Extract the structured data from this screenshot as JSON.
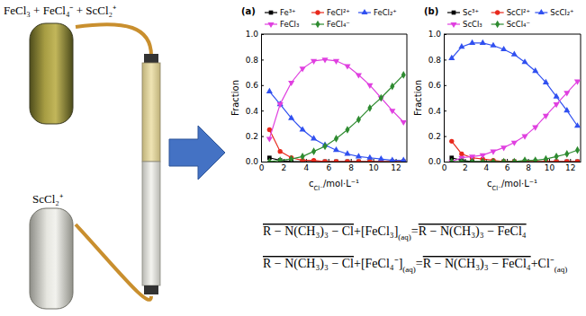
{
  "labels": {
    "top_tube": "FeCl₃ + FeCl₄⁻ + ScCl₂⁺",
    "bottom_tube": "ScCl₂⁺"
  },
  "chart_data": [
    {
      "type": "line",
      "title": "(a)",
      "xlabel": [
        "c",
        "Cl⁻",
        "/mol·L⁻¹"
      ],
      "ylabel": "Fraction",
      "x": [
        0.75,
        1.7,
        2.7,
        3.7,
        4.7,
        5.7,
        6.7,
        7.7,
        8.7,
        9.7,
        10.7,
        11.7,
        12.7
      ],
      "xlim": [
        0,
        13
      ],
      "xticks": [
        0,
        2,
        4,
        6,
        8,
        10,
        12
      ],
      "ylim": [
        0,
        1
      ],
      "yticks": [
        {
          "value": 0,
          "label": "0.0"
        },
        0.2,
        0.4,
        0.6,
        0.8,
        {
          "value": 1,
          "label": "1.0"
        }
      ],
      "legend": "top",
      "series": [
        {
          "name": "Fe³⁺",
          "color": "#000000",
          "marker": "square",
          "line_style": "solid",
          "values": [
            0.03,
            0.01,
            0,
            0,
            0,
            0,
            0,
            0,
            0,
            0,
            0,
            0,
            0
          ]
        },
        {
          "name": "FeCl²⁺",
          "color": "#e8291c",
          "marker": "circle",
          "line_style": "solid",
          "values": [
            0.25,
            0.08,
            0.03,
            0.01,
            0.01,
            0,
            0,
            0,
            0,
            0,
            0,
            0,
            0
          ]
        },
        {
          "name": "FeCl₂⁺",
          "color": "#3050f0",
          "marker": "triangle",
          "line_style": "solid",
          "values": [
            0.55,
            0.45,
            0.34,
            0.25,
            0.18,
            0.13,
            0.09,
            0.06,
            0.04,
            0.03,
            0.02,
            0.01,
            0.01
          ]
        },
        {
          "name": "FeCl₃",
          "color": "#e040e0",
          "marker": "triangle-down",
          "line_style": "solid",
          "values": [
            0.18,
            0.45,
            0.62,
            0.73,
            0.79,
            0.8,
            0.79,
            0.75,
            0.68,
            0.6,
            0.5,
            0.4,
            0.31
          ]
        },
        {
          "name": "FeCl₄⁻",
          "color": "#2e8b30",
          "marker": "diamond",
          "line_style": "solid",
          "values": [
            0,
            0.01,
            0.02,
            0.04,
            0.08,
            0.12,
            0.18,
            0.25,
            0.33,
            0.42,
            0.5,
            0.59,
            0.68
          ]
        }
      ]
    },
    {
      "type": "line",
      "title": "(b)",
      "xlabel": [
        "c",
        "Cl⁻",
        "/mol·L⁻¹"
      ],
      "ylabel": "Fraction",
      "x": [
        0.75,
        1.7,
        2.7,
        3.7,
        4.7,
        5.7,
        6.7,
        7.7,
        8.7,
        9.7,
        10.7,
        11.7,
        12.7
      ],
      "xlim": [
        0,
        13
      ],
      "xticks": [
        0,
        2,
        4,
        6,
        8,
        10,
        12
      ],
      "ylim": [
        0,
        1
      ],
      "yticks": [
        {
          "value": 0,
          "label": "0.0"
        },
        0.2,
        0.4,
        0.6,
        0.8,
        {
          "value": 1,
          "label": "1.0"
        }
      ],
      "legend": "top",
      "series": [
        {
          "name": "Sc³⁺",
          "color": "#000000",
          "marker": "square",
          "line_style": "solid",
          "values": [
            0.03,
            0.01,
            0,
            0,
            0,
            0,
            0,
            0,
            0,
            0,
            0,
            0,
            0
          ]
        },
        {
          "name": "ScCl²⁺",
          "color": "#e8291c",
          "marker": "circle",
          "line_style": "solid",
          "values": [
            0.16,
            0.06,
            0.03,
            0.02,
            0.01,
            0,
            0,
            0,
            0,
            0,
            0,
            0,
            0
          ]
        },
        {
          "name": "ScCl₂⁺",
          "color": "#3050f0",
          "marker": "triangle",
          "line_style": "solid",
          "values": [
            0.81,
            0.9,
            0.93,
            0.93,
            0.91,
            0.88,
            0.84,
            0.78,
            0.71,
            0.62,
            0.51,
            0.4,
            0.28
          ]
        },
        {
          "name": "ScCl₃",
          "color": "#e040e0",
          "marker": "triangle-down",
          "line_style": "solid",
          "values": [
            0,
            0.03,
            0.04,
            0.05,
            0.08,
            0.11,
            0.15,
            0.2,
            0.27,
            0.36,
            0.45,
            0.54,
            0.63
          ]
        },
        {
          "name": "ScCl₄⁻",
          "color": "#2e8b30",
          "marker": "diamond",
          "line_style": "solid",
          "values": [
            0,
            0,
            0,
            0,
            0,
            0,
            0,
            0.01,
            0.01,
            0.02,
            0.04,
            0.06,
            0.09
          ]
        }
      ]
    }
  ],
  "equations": [
    [
      {
        "text": "R − N(CH₃)₃ − Cl",
        "overline": true
      },
      {
        "text": "+"
      },
      {
        "text": "[FeCl₃]",
        "sub": "(aq)"
      },
      {
        "text": "="
      },
      {
        "text": "R − N(CH₃)₃ − FeCl₄",
        "overline": true
      }
    ],
    [
      {
        "text": "R − N(CH₃)₃ − Cl",
        "overline": true
      },
      {
        "text": "+"
      },
      {
        "text": "[FeCl₄⁻]",
        "sub": "(aq)"
      },
      {
        "text": "="
      },
      {
        "text": "R − N(CH₃)₃ − FeCl₄",
        "overline": true
      },
      {
        "text": "+"
      },
      {
        "text": "Cl⁻",
        "sub": "(aq)"
      }
    ]
  ]
}
